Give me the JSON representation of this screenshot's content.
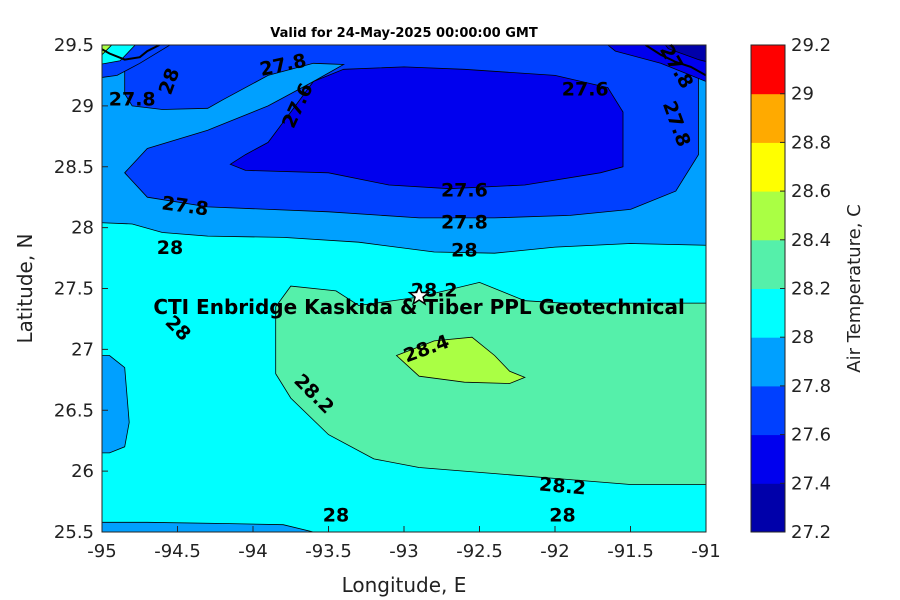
{
  "chart_data": {
    "type": "contour",
    "title": "Valid for 24-May-2025 00:00:00 GMT",
    "xlabel": "Longitude, E",
    "ylabel": "Latitude, N",
    "xlim": [
      -95,
      -91
    ],
    "ylim": [
      25.5,
      29.5
    ],
    "x_ticks": [
      "-95",
      "-94.5",
      "-94",
      "-93.5",
      "-93",
      "-92.5",
      "-92",
      "-91.5",
      "-91"
    ],
    "y_ticks": [
      "25.5",
      "26",
      "26.5",
      "27",
      "27.5",
      "28",
      "28.5",
      "29",
      "29.5"
    ],
    "colorbar": {
      "label": "Air Temperature, C",
      "range": [
        27.2,
        29.2
      ],
      "ticks": [
        "27.2",
        "27.4",
        "27.6",
        "27.8",
        "28",
        "28.2",
        "28.4",
        "28.6",
        "28.8",
        "29",
        "29.2"
      ],
      "colors": [
        "#0000aa",
        "#0000ee",
        "#0040ff",
        "#00a0ff",
        "#00ffff",
        "#55f0aa",
        "#aaff44",
        "#ffff00",
        "#ffaa00",
        "#ff5500",
        "#ff0000"
      ]
    },
    "contour_labels": [
      {
        "text": "27.8",
        "lon": -94.8,
        "lat": 29.05,
        "rot": 0
      },
      {
        "text": "28",
        "lon": -94.55,
        "lat": 29.2,
        "rot": -70
      },
      {
        "text": "27.8",
        "lon": -93.8,
        "lat": 29.33,
        "rot": -12
      },
      {
        "text": "27.6",
        "lon": -93.7,
        "lat": 29.0,
        "rot": -65
      },
      {
        "text": "27.6",
        "lon": -91.8,
        "lat": 29.13,
        "rot": 0
      },
      {
        "text": "27.8",
        "lon": -91.2,
        "lat": 28.85,
        "rot": 70
      },
      {
        "text": "27.8",
        "lon": -91.2,
        "lat": 29.32,
        "rot": 60
      },
      {
        "text": "27.6",
        "lon": -92.6,
        "lat": 28.3,
        "rot": 0
      },
      {
        "text": "27.8",
        "lon": -94.45,
        "lat": 28.17,
        "rot": 8
      },
      {
        "text": "27.8",
        "lon": -92.6,
        "lat": 28.04,
        "rot": 0
      },
      {
        "text": "28",
        "lon": -94.55,
        "lat": 27.83,
        "rot": 0
      },
      {
        "text": "28",
        "lon": -92.6,
        "lat": 27.81,
        "rot": 0
      },
      {
        "text": "28.2",
        "lon": -92.8,
        "lat": 27.48,
        "rot": 0
      },
      {
        "text": "28",
        "lon": -94.5,
        "lat": 27.17,
        "rot": 45
      },
      {
        "text": "28.4",
        "lon": -92.85,
        "lat": 27.0,
        "rot": -20
      },
      {
        "text": "28.2",
        "lon": -93.6,
        "lat": 26.63,
        "rot": 45
      },
      {
        "text": "28.2",
        "lon": -91.95,
        "lat": 25.87,
        "rot": 5
      },
      {
        "text": "28",
        "lon": -93.45,
        "lat": 25.63,
        "rot": 0
      },
      {
        "text": "28",
        "lon": -91.95,
        "lat": 25.63,
        "rot": 0
      }
    ],
    "marker": {
      "lon": -92.9,
      "lat": 27.44,
      "symbol": "star"
    },
    "annotation": {
      "text": "CTI Enbridge  Kaskida & Tiber PPL Geotechnical",
      "lon": -92.9,
      "lat": 27.35
    }
  }
}
